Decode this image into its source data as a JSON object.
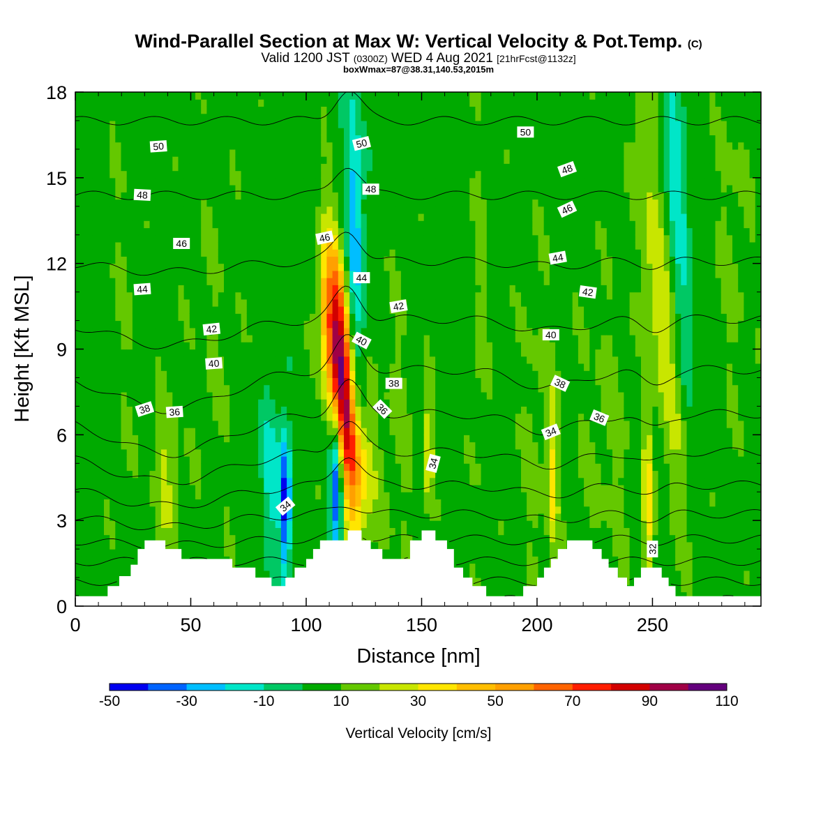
{
  "header": {
    "title_main": "Wind-Parallel Section at Max W: Vertical Velocity & Pot.Temp.",
    "title_mark": "(C)",
    "valid_prefix": "Valid 1200 JST",
    "valid_zulu": "(0300Z)",
    "valid_date": "WED 4 Aug 2021",
    "valid_fcst": "[21hrFcst@1132z]",
    "boxwmax": "boxWmax=87@38.31,140.53,2015m"
  },
  "colorbar": {
    "label": "Vertical Velocity [cm/s]",
    "min": -50,
    "max": 110,
    "step": 10,
    "tick_labels": [
      "-50",
      "-30",
      "-10",
      "10",
      "30",
      "50",
      "70",
      "90",
      "110"
    ],
    "colors": [
      "#0000f0",
      "#0064ff",
      "#00beff",
      "#00e6c8",
      "#00c864",
      "#00aa00",
      "#64c800",
      "#c8e600",
      "#ffe600",
      "#ffbe00",
      "#ffa000",
      "#ff6400",
      "#ff1e00",
      "#d20000",
      "#a00046",
      "#64007d"
    ]
  },
  "chart_data": {
    "type": "heatmap",
    "xlabel": "Distance [nm]",
    "ylabel": "Height [Kft MSL]",
    "xlim": [
      0,
      297
    ],
    "ylim": [
      0,
      18
    ],
    "xticks": [
      0,
      50,
      100,
      150,
      200,
      250
    ],
    "yticks": [
      0,
      3,
      6,
      9,
      12,
      15,
      18
    ],
    "background_value": 5,
    "colorscale_ref": "colorbar",
    "w_features": [
      {
        "x": 116,
        "z": 8.0,
        "w": 87,
        "sx": 3.2,
        "sz": 3.0,
        "tilt": -0.85
      },
      {
        "x": 110,
        "z": 9.5,
        "w": 45,
        "sx": 3.5,
        "sz": 2.2,
        "tilt": -0.6
      },
      {
        "x": 123,
        "z": 4.5,
        "w": 30,
        "sx": 5,
        "sz": 1.8,
        "tilt": 0
      },
      {
        "x": 113,
        "z": 4.0,
        "w": -45,
        "sx": 1.8,
        "sz": 1.6,
        "tilt": 0
      },
      {
        "x": 121,
        "z": 13.5,
        "w": -28,
        "sx": 2.5,
        "sz": 3.5,
        "tilt": -0.3
      },
      {
        "x": 91,
        "z": 3.5,
        "w": -45,
        "sx": 1.6,
        "sz": 1.8,
        "tilt": 0
      },
      {
        "x": 85,
        "z": 4.5,
        "w": -15,
        "sx": 3.5,
        "sz": 2,
        "tilt": 0
      },
      {
        "x": 39,
        "z": 4.5,
        "w": 22,
        "sx": 4,
        "sz": 2,
        "tilt": 0
      },
      {
        "x": 253,
        "z": 10.5,
        "w": 28,
        "sx": 4,
        "sz": 5,
        "tilt": -1.2
      },
      {
        "x": 248,
        "z": 3.5,
        "w": 35,
        "sx": 1.5,
        "sz": 2,
        "tilt": 0
      },
      {
        "x": 207,
        "z": 4.5,
        "w": 30,
        "sx": 1.6,
        "sz": 2,
        "tilt": 0
      },
      {
        "x": 153,
        "z": 5.5,
        "w": 30,
        "sx": 1.6,
        "sz": 1.5,
        "tilt": 0
      },
      {
        "x": 261,
        "z": 14.5,
        "w": -15,
        "sx": 3,
        "sz": 4,
        "tilt": -0.6
      },
      {
        "x": 230,
        "z": 6,
        "w": 12,
        "sx": 10,
        "sz": 4,
        "tilt": 0
      },
      {
        "x": 200,
        "z": 6,
        "w": 12,
        "sx": 6,
        "sz": 5,
        "tilt": 0
      },
      {
        "x": 140,
        "z": 6,
        "w": 12,
        "sx": 6,
        "sz": 4,
        "tilt": 0
      },
      {
        "x": 60,
        "z": 9,
        "w": 10,
        "sx": 8,
        "sz": 5,
        "tilt": 0
      },
      {
        "x": 175,
        "z": 10,
        "w": 12,
        "sx": 3,
        "sz": 6,
        "tilt": 0
      },
      {
        "x": 20,
        "z": 10,
        "w": 10,
        "sx": 4,
        "sz": 7,
        "tilt": 0
      },
      {
        "x": 285,
        "z": 13,
        "w": 12,
        "sx": 6,
        "sz": 5,
        "tilt": 0
      }
    ],
    "terrain": [
      {
        "x": 0,
        "z": 0.35
      },
      {
        "x": 14,
        "z": 0.35
      },
      {
        "x": 14,
        "z": 0.7
      },
      {
        "x": 19,
        "z": 0.7
      },
      {
        "x": 19,
        "z": 1.05
      },
      {
        "x": 24,
        "z": 1.05
      },
      {
        "x": 24,
        "z": 1.45
      },
      {
        "x": 27,
        "z": 1.45
      },
      {
        "x": 27,
        "z": 2.0
      },
      {
        "x": 30,
        "z": 2.0
      },
      {
        "x": 30,
        "z": 2.3
      },
      {
        "x": 39,
        "z": 2.3
      },
      {
        "x": 39,
        "z": 2.0
      },
      {
        "x": 46,
        "z": 2.0
      },
      {
        "x": 46,
        "z": 1.65
      },
      {
        "x": 68,
        "z": 1.65
      },
      {
        "x": 68,
        "z": 1.35
      },
      {
        "x": 78,
        "z": 1.35
      },
      {
        "x": 78,
        "z": 1.0
      },
      {
        "x": 85,
        "z": 1.0
      },
      {
        "x": 85,
        "z": 0.7
      },
      {
        "x": 91,
        "z": 0.7
      },
      {
        "x": 91,
        "z": 1.0
      },
      {
        "x": 95,
        "z": 1.0
      },
      {
        "x": 95,
        "z": 1.35
      },
      {
        "x": 100,
        "z": 1.35
      },
      {
        "x": 100,
        "z": 1.65
      },
      {
        "x": 103,
        "z": 1.65
      },
      {
        "x": 103,
        "z": 2.0
      },
      {
        "x": 106,
        "z": 2.0
      },
      {
        "x": 106,
        "z": 2.3
      },
      {
        "x": 118,
        "z": 2.3
      },
      {
        "x": 118,
        "z": 2.65
      },
      {
        "x": 124,
        "z": 2.65
      },
      {
        "x": 124,
        "z": 2.3
      },
      {
        "x": 128,
        "z": 2.3
      },
      {
        "x": 128,
        "z": 2.0
      },
      {
        "x": 133,
        "z": 2.0
      },
      {
        "x": 133,
        "z": 1.65
      },
      {
        "x": 145,
        "z": 1.65
      },
      {
        "x": 145,
        "z": 2.3
      },
      {
        "x": 150,
        "z": 2.3
      },
      {
        "x": 150,
        "z": 2.65
      },
      {
        "x": 156,
        "z": 2.65
      },
      {
        "x": 156,
        "z": 2.3
      },
      {
        "x": 161,
        "z": 2.3
      },
      {
        "x": 161,
        "z": 2.0
      },
      {
        "x": 164,
        "z": 2.0
      },
      {
        "x": 164,
        "z": 1.35
      },
      {
        "x": 168,
        "z": 1.35
      },
      {
        "x": 168,
        "z": 1.0
      },
      {
        "x": 172,
        "z": 1.0
      },
      {
        "x": 172,
        "z": 0.7
      },
      {
        "x": 178,
        "z": 0.7
      },
      {
        "x": 178,
        "z": 0.35
      },
      {
        "x": 194,
        "z": 0.35
      },
      {
        "x": 194,
        "z": 0.7
      },
      {
        "x": 200,
        "z": 0.7
      },
      {
        "x": 200,
        "z": 1.0
      },
      {
        "x": 203,
        "z": 1.0
      },
      {
        "x": 203,
        "z": 1.35
      },
      {
        "x": 206,
        "z": 1.35
      },
      {
        "x": 206,
        "z": 1.65
      },
      {
        "x": 209,
        "z": 1.65
      },
      {
        "x": 209,
        "z": 2.0
      },
      {
        "x": 213,
        "z": 2.0
      },
      {
        "x": 213,
        "z": 2.3
      },
      {
        "x": 224,
        "z": 2.3
      },
      {
        "x": 224,
        "z": 2.0
      },
      {
        "x": 228,
        "z": 2.0
      },
      {
        "x": 228,
        "z": 1.65
      },
      {
        "x": 231,
        "z": 1.65
      },
      {
        "x": 231,
        "z": 1.35
      },
      {
        "x": 235,
        "z": 1.35
      },
      {
        "x": 235,
        "z": 1.0
      },
      {
        "x": 239,
        "z": 1.0
      },
      {
        "x": 239,
        "z": 0.7
      },
      {
        "x": 242,
        "z": 0.7
      },
      {
        "x": 242,
        "z": 1.0
      },
      {
        "x": 245,
        "z": 1.0
      },
      {
        "x": 245,
        "z": 1.35
      },
      {
        "x": 254,
        "z": 1.35
      },
      {
        "x": 254,
        "z": 1.0
      },
      {
        "x": 257,
        "z": 1.0
      },
      {
        "x": 257,
        "z": 0.7
      },
      {
        "x": 260,
        "z": 0.7
      },
      {
        "x": 260,
        "z": 0.35
      },
      {
        "x": 297,
        "z": 0.35
      }
    ],
    "theta_levels": [
      32,
      33,
      34,
      35,
      36,
      37,
      38,
      39,
      40,
      41,
      42,
      43,
      44,
      45,
      46,
      47,
      48,
      49,
      50,
      51,
      52
    ],
    "theta_labels": [
      {
        "text": "50",
        "x": 36,
        "z": 16.1,
        "angle": -4
      },
      {
        "text": "48",
        "x": 29,
        "z": 14.4,
        "angle": 3
      },
      {
        "text": "46",
        "x": 46,
        "z": 12.7,
        "angle": 0
      },
      {
        "text": "44",
        "x": 29,
        "z": 11.1,
        "angle": -4
      },
      {
        "text": "42",
        "x": 59,
        "z": 9.7,
        "angle": -6
      },
      {
        "text": "40",
        "x": 60,
        "z": 8.5,
        "angle": -4
      },
      {
        "text": "38",
        "x": 30,
        "z": 6.9,
        "angle": -18
      },
      {
        "text": "36",
        "x": 43,
        "z": 6.8,
        "angle": -4
      },
      {
        "text": "34",
        "x": 91,
        "z": 3.5,
        "angle": -40
      },
      {
        "text": "46",
        "x": 108,
        "z": 12.9,
        "angle": -12
      },
      {
        "text": "50",
        "x": 124,
        "z": 16.2,
        "angle": -14
      },
      {
        "text": "48",
        "x": 128,
        "z": 14.6,
        "angle": 0
      },
      {
        "text": "44",
        "x": 124,
        "z": 11.5,
        "angle": 0
      },
      {
        "text": "42",
        "x": 140,
        "z": 10.5,
        "angle": -10
      },
      {
        "text": "40",
        "x": 124,
        "z": 9.3,
        "angle": 28
      },
      {
        "text": "38",
        "x": 138,
        "z": 7.8,
        "angle": 0
      },
      {
        "text": "36",
        "x": 133,
        "z": 6.9,
        "angle": 45
      },
      {
        "text": "34",
        "x": 155,
        "z": 5.0,
        "angle": -75
      },
      {
        "text": "50",
        "x": 195,
        "z": 16.6,
        "angle": 0
      },
      {
        "text": "48",
        "x": 213,
        "z": 15.3,
        "angle": -20
      },
      {
        "text": "46",
        "x": 213,
        "z": 13.9,
        "angle": -25
      },
      {
        "text": "44",
        "x": 209,
        "z": 12.2,
        "angle": -10
      },
      {
        "text": "42",
        "x": 222,
        "z": 11.0,
        "angle": 8
      },
      {
        "text": "40",
        "x": 206,
        "z": 9.5,
        "angle": 0
      },
      {
        "text": "38",
        "x": 210,
        "z": 7.8,
        "angle": 25
      },
      {
        "text": "36",
        "x": 227,
        "z": 6.6,
        "angle": 22
      },
      {
        "text": "34",
        "x": 206,
        "z": 6.1,
        "angle": -22
      },
      {
        "text": "32",
        "x": 250,
        "z": 2.0,
        "angle": -90
      }
    ]
  }
}
